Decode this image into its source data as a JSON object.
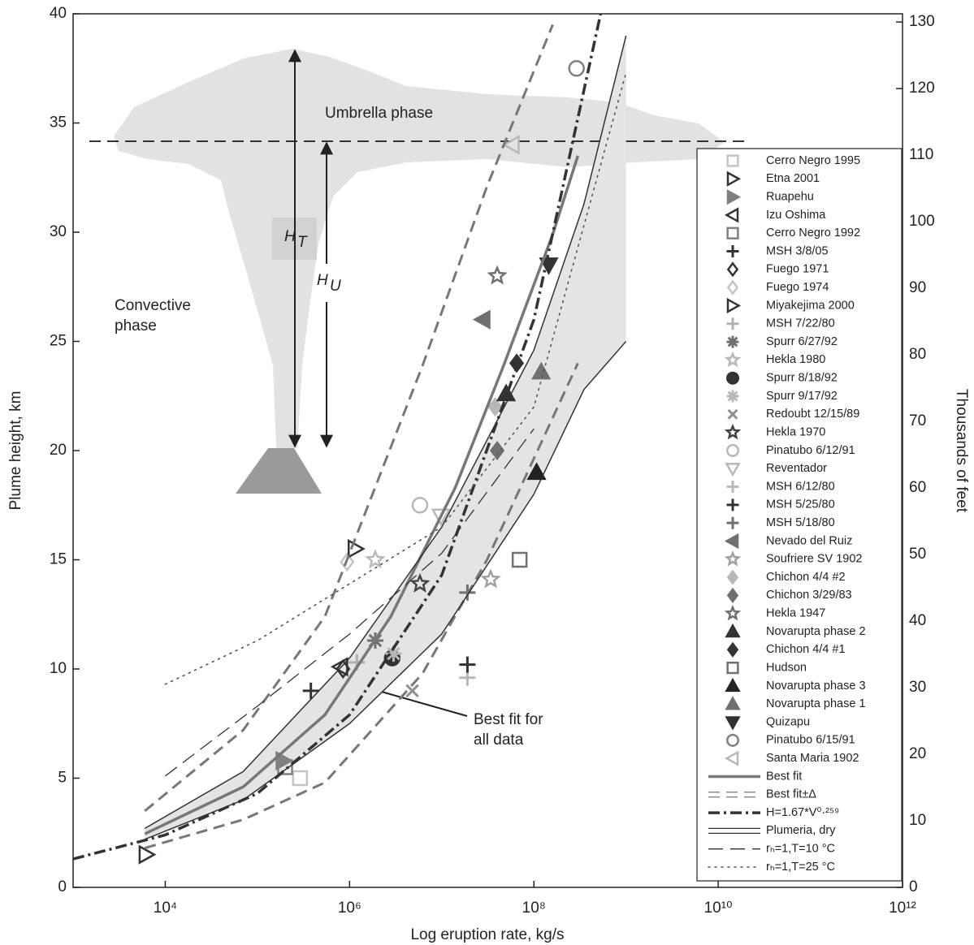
{
  "chart_data": {
    "type": "scatter",
    "x_label": "Log eruption rate, kg/s",
    "y_label": "Plume height, km",
    "y2_label": "Thousands of feet",
    "xlim": [
      1000,
      1000000000000
    ],
    "log_x": true,
    "xticks": [
      {
        "value": 10000,
        "label": "10⁴"
      },
      {
        "value": 1000000,
        "label": "10⁶"
      },
      {
        "value": 100000000,
        "label": "10⁸"
      },
      {
        "value": 10000000000,
        "label": "10¹⁰"
      },
      {
        "value": 1000000000000,
        "label": "10¹²"
      }
    ],
    "ylim": [
      0,
      40
    ],
    "yticks": [
      0,
      5,
      10,
      15,
      20,
      25,
      30,
      35,
      40
    ],
    "y2lim": [
      0,
      131.23
    ],
    "y2ticks": [
      0,
      10,
      20,
      30,
      40,
      50,
      60,
      70,
      80,
      90,
      100,
      110,
      120,
      130
    ],
    "annotations": {
      "umbrella": "Umbrella phase",
      "convective": [
        "Convective",
        "phase"
      ],
      "ht": [
        "H",
        "T"
      ],
      "hu": [
        "H",
        "U"
      ],
      "best_fit_note": [
        "Best fit for",
        "all data"
      ]
    },
    "series": [
      {
        "name": "Cerro Negro 1995",
        "marker": "square",
        "color": "#c4c4c4",
        "filled": false,
        "x": [
          290000
        ],
        "values": [
          5
        ]
      },
      {
        "name": "Etna 2001",
        "marker": "tri-right",
        "color": "#333333",
        "filled": false,
        "x": [
          6200
        ],
        "values": [
          1.5
        ]
      },
      {
        "name": "Ruapehu",
        "marker": "tri-right",
        "color": "#808080",
        "filled": true,
        "x": [
          190000
        ],
        "values": [
          5.8
        ]
      },
      {
        "name": "Izu Oshima",
        "marker": "tri-left",
        "color": "#333333",
        "filled": false,
        "x": [
          800000
        ],
        "values": [
          10.1
        ]
      },
      {
        "name": "Cerro Negro 1992",
        "marker": "square",
        "color": "#808080",
        "filled": false,
        "x": [
          200000
        ],
        "values": [
          5.5
        ]
      },
      {
        "name": "MSH 3/8/05",
        "marker": "plus",
        "color": "#333333",
        "filled": false,
        "x": [
          380000
        ],
        "values": [
          9
        ]
      },
      {
        "name": "Fuego 1971",
        "marker": "diamond",
        "color": "#333333",
        "filled": false,
        "x": [
          850000
        ],
        "values": [
          10
        ]
      },
      {
        "name": "Fuego 1974",
        "marker": "diamond",
        "color": "#c4c4c4",
        "filled": false,
        "x": [
          940000
        ],
        "values": [
          14.9
        ]
      },
      {
        "name": "Miyakejima 2000",
        "marker": "tri-right",
        "color": "#333333",
        "filled": false,
        "x": [
          1150000
        ],
        "values": [
          15.5
        ]
      },
      {
        "name": "MSH 7/22/80",
        "marker": "plus",
        "color": "#b0b0b0",
        "filled": false,
        "x": [
          1200000
        ],
        "values": [
          10.3
        ]
      },
      {
        "name": "Spurr 6/27/92",
        "marker": "asterisk",
        "color": "#707070",
        "filled": false,
        "x": [
          1900000
        ],
        "values": [
          11.3
        ]
      },
      {
        "name": "Hekla 1980",
        "marker": "star",
        "color": "#b8b8b8",
        "filled": false,
        "x": [
          1900000
        ],
        "values": [
          15
        ]
      },
      {
        "name": "Spurr 8/18/92",
        "marker": "circle",
        "color": "#333333",
        "filled": true,
        "x": [
          2900000
        ],
        "values": [
          10.5
        ]
      },
      {
        "name": "Spurr 9/17/92",
        "marker": "asterisk",
        "color": "#b8b8b8",
        "filled": false,
        "x": [
          3000000
        ],
        "values": [
          10.7
        ]
      },
      {
        "name": "Redoubt 12/15/89",
        "marker": "cross",
        "color": "#909090",
        "filled": false,
        "x": [
          4800000
        ],
        "values": [
          9
        ]
      },
      {
        "name": "Hekla 1970",
        "marker": "star",
        "color": "#444444",
        "filled": false,
        "x": [
          5800000
        ],
        "values": [
          13.9
        ]
      },
      {
        "name": "Pinatubo 6/12/91",
        "marker": "circle",
        "color": "#b8b8b8",
        "filled": false,
        "x": [
          5800000
        ],
        "values": [
          17.5
        ]
      },
      {
        "name": "Reventador",
        "marker": "tri-down",
        "color": "#b8b8b8",
        "filled": false,
        "x": [
          9800000
        ],
        "values": [
          17
        ]
      },
      {
        "name": "MSH 6/12/80",
        "marker": "plus",
        "color": "#b8b8b8",
        "filled": false,
        "x": [
          19000000
        ],
        "values": [
          9.6
        ]
      },
      {
        "name": "MSH 5/25/80",
        "marker": "plus",
        "color": "#333333",
        "filled": false,
        "x": [
          19000000
        ],
        "values": [
          10.2
        ]
      },
      {
        "name": "MSH 5/18/80",
        "marker": "plus",
        "color": "#707070",
        "filled": false,
        "x": [
          19000000
        ],
        "values": [
          13.5
        ]
      },
      {
        "name": "Nevado del Ruiz",
        "marker": "tri-left",
        "color": "#707070",
        "filled": true,
        "x": [
          28000000
        ],
        "values": [
          26
        ]
      },
      {
        "name": "Soufriere SV 1902",
        "marker": "star",
        "color": "#a0a0a0",
        "filled": false,
        "x": [
          34000000
        ],
        "values": [
          14.1
        ]
      },
      {
        "name": "Chichon 4/4 #2",
        "marker": "diamond",
        "color": "#b8b8b8",
        "filled": true,
        "x": [
          38000000
        ],
        "values": [
          22
        ]
      },
      {
        "name": "Chichon 3/29/83",
        "marker": "diamond",
        "color": "#707070",
        "filled": true,
        "x": [
          40000000
        ],
        "values": [
          20
        ]
      },
      {
        "name": "Hekla 1947",
        "marker": "star",
        "color": "#707070",
        "filled": false,
        "x": [
          40000000
        ],
        "values": [
          28
        ]
      },
      {
        "name": "Novarupta phase 2",
        "marker": "tri-up",
        "color": "#333333",
        "filled": true,
        "x": [
          50000000
        ],
        "values": [
          22.6
        ]
      },
      {
        "name": "Chichon 4/4 #1",
        "marker": "diamond",
        "color": "#333333",
        "filled": true,
        "x": [
          65000000
        ],
        "values": [
          24
        ]
      },
      {
        "name": "Hudson",
        "marker": "square",
        "color": "#707070",
        "filled": false,
        "x": [
          70000000
        ],
        "values": [
          15
        ]
      },
      {
        "name": "Novarupta phase 3",
        "marker": "tri-up",
        "color": "#222222",
        "filled": true,
        "x": [
          107000000
        ],
        "values": [
          19
        ]
      },
      {
        "name": "Novarupta phase 1",
        "marker": "tri-up",
        "color": "#707070",
        "filled": true,
        "x": [
          120000000
        ],
        "values": [
          23.6
        ]
      },
      {
        "name": "Quizapu",
        "marker": "tri-down",
        "color": "#333333",
        "filled": true,
        "x": [
          145000000
        ],
        "values": [
          28.5
        ]
      },
      {
        "name": "Pinatubo 6/15/91",
        "marker": "circle",
        "color": "#808080",
        "filled": false,
        "x": [
          290000000
        ],
        "values": [
          37.5
        ]
      },
      {
        "name": "Santa Maria 1902",
        "marker": "tri-left",
        "color": "#b8b8b8",
        "filled": false,
        "x": [
          58000000
        ],
        "values": [
          34
        ]
      },
      {
        "name": "Best fit",
        "line": "solid",
        "color": "#777777",
        "width": 3.5,
        "x": [
          6000,
          70000,
          540000,
          2800000,
          14000000,
          47000000,
          160000000,
          300000000
        ],
        "values": [
          2.45,
          4.6,
          7.9,
          12.4,
          18.3,
          23.9,
          29.9,
          33.5
        ]
      },
      {
        "name": "Best fit±Δ",
        "line": "dashed",
        "color": "#777777",
        "width": 3,
        "x": [
          6000,
          70000,
          540000,
          6200000,
          31000000,
          160000000,
          300000000
        ],
        "values": [
          3.5,
          7.2,
          12.4,
          23.9,
          32.1,
          39.5,
          null
        ],
        "lower": [
          1.8,
          3.1,
          4.8,
          9.8,
          15,
          21.5,
          24
        ]
      },
      {
        "name": "H=1.67*V⁰·²⁵⁹",
        "line": "dashdot",
        "color": "#333333",
        "width": 3.5,
        "x": [
          1000,
          10000,
          100000,
          1000000,
          10000000,
          100000000,
          530000000
        ],
        "values": [
          1.3,
          2.4,
          4.3,
          7.9,
          14.3,
          26,
          40
        ]
      },
      {
        "name": "Plumeria, dry",
        "line": "solid",
        "color": "#333333",
        "width": 1.5,
        "shaded": true,
        "x": [
          6000,
          70000,
          1000000,
          10000000,
          100000000,
          350000000,
          1000000000
        ],
        "values": [
          2.7,
          5.3,
          10.5,
          16.5,
          24.6,
          31.3,
          39
        ],
        "lower": [
          2.2,
          4,
          7.5,
          11.6,
          18,
          22.8,
          25
        ]
      },
      {
        "name": "rₕ=1,T=10 °C",
        "line": "longdash",
        "color": "#333333",
        "width": 1.3,
        "x": [
          10000,
          100000,
          1000000,
          10000000,
          100000000
        ],
        "values": [
          5.1,
          8.3,
          11.6,
          15.3,
          21
        ]
      },
      {
        "name": "rₕ=1,T=25 °C",
        "line": "dotted",
        "color": "#555555",
        "width": 1.6,
        "x": [
          10000,
          100000,
          1000000,
          10000000,
          100000000,
          1000000000
        ],
        "values": [
          9.3,
          11.3,
          13.9,
          16.5,
          22,
          37.3
        ]
      }
    ]
  }
}
